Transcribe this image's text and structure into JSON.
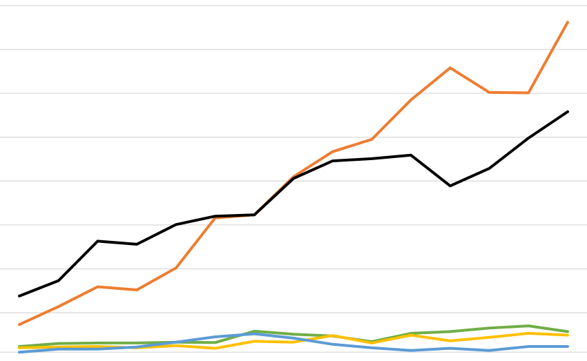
{
  "chart_data": {
    "type": "line",
    "title": "",
    "xlabel": "",
    "ylabel": "",
    "x": [
      1,
      2,
      3,
      4,
      5,
      6,
      7,
      8,
      9,
      10,
      11,
      12,
      13,
      14,
      15
    ],
    "ylim": [
      -1,
      80
    ],
    "grid_values": [
      1,
      10,
      20,
      30,
      40,
      50,
      60,
      70,
      80
    ],
    "grid": true,
    "legend": "none",
    "series": [
      {
        "color": "#ED7D31",
        "values": [
          7.3,
          11.4,
          15.9,
          15.2,
          20.2,
          31.6,
          32.3,
          41.0,
          46.7,
          49.5,
          58.5,
          65.8,
          60.2,
          60.1,
          76.2
        ]
      },
      {
        "color": "#000000",
        "values": [
          13.8,
          17.3,
          26.3,
          25.6,
          30.1,
          32.0,
          32.3,
          40.6,
          44.6,
          45.1,
          45.9,
          38.9,
          42.9,
          49.8,
          55.8
        ]
      },
      {
        "color": "#70AD47",
        "values": [
          2.3,
          3.0,
          3.1,
          3.1,
          3.3,
          3.2,
          5.8,
          5.1,
          4.7,
          3.4,
          5.3,
          5.7,
          6.5,
          7.0,
          5.7
        ]
      },
      {
        "color": "#FFC000",
        "values": [
          2.0,
          2.2,
          2.3,
          2.0,
          2.5,
          1.9,
          3.5,
          3.3,
          4.8,
          3.1,
          4.9,
          3.6,
          4.4,
          5.3,
          4.9
        ]
      },
      {
        "color": "#5B9BD5",
        "values": [
          1.0,
          1.7,
          1.7,
          2.2,
          3.3,
          4.5,
          5.2,
          4.2,
          2.8,
          2.0,
          1.4,
          1.9,
          1.4,
          2.3,
          2.3
        ]
      }
    ]
  }
}
